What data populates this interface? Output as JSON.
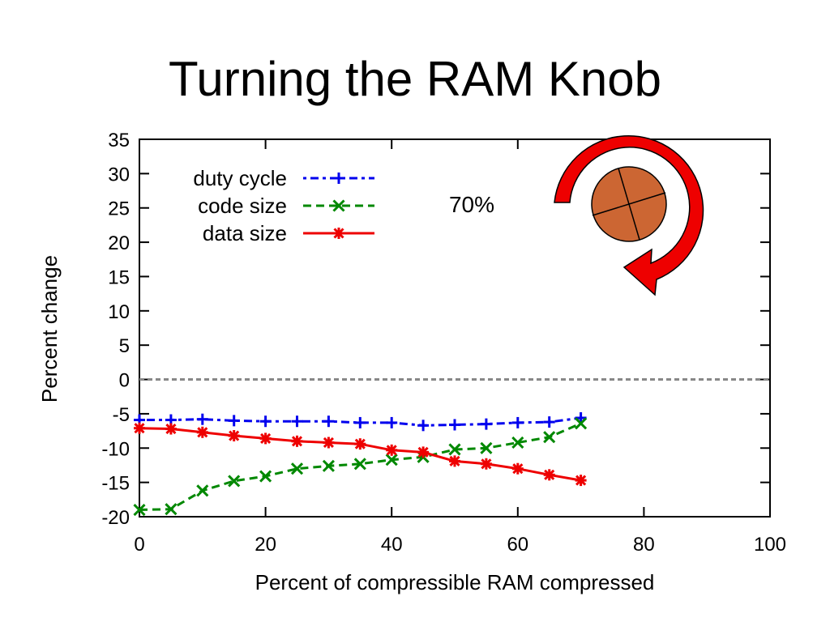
{
  "slide": {
    "title": "Turning the RAM Knob"
  },
  "chart_data": {
    "type": "line",
    "title": "",
    "xlabel": "Percent of compressible RAM compressed",
    "ylabel": "Percent change",
    "xlim": [
      0,
      100
    ],
    "ylim": [
      -20,
      35
    ],
    "xticks": [
      0,
      20,
      40,
      60,
      80,
      100
    ],
    "yticks": [
      -20,
      -15,
      -10,
      -5,
      0,
      5,
      10,
      15,
      20,
      25,
      30,
      35
    ],
    "grid": false,
    "legend": "top-left",
    "annotation": "70%",
    "reference_line": {
      "y": 0,
      "style": "dotted",
      "color": "#888888"
    },
    "series": [
      {
        "name": "duty cycle",
        "color": "#0000ee",
        "dash": "dot-dash",
        "marker": "plus",
        "x": [
          0,
          5,
          10,
          15,
          20,
          25,
          30,
          35,
          40,
          45,
          50,
          55,
          60,
          65,
          70
        ],
        "y": [
          -5.9,
          -5.9,
          -5.8,
          -6.0,
          -6.1,
          -6.1,
          -6.1,
          -6.3,
          -6.3,
          -6.7,
          -6.6,
          -6.5,
          -6.3,
          -6.2,
          -5.6
        ]
      },
      {
        "name": "code size",
        "color": "#008800",
        "dash": "dashed",
        "marker": "x",
        "x": [
          0,
          5,
          10,
          15,
          20,
          25,
          30,
          35,
          40,
          45,
          50,
          55,
          60,
          65,
          70
        ],
        "y": [
          -19.0,
          -18.9,
          -16.2,
          -14.8,
          -14.1,
          -13.0,
          -12.6,
          -12.3,
          -11.7,
          -11.3,
          -10.2,
          -10.0,
          -9.2,
          -8.4,
          -6.4
        ]
      },
      {
        "name": "data size",
        "color": "#ee0000",
        "dash": "solid",
        "marker": "star",
        "x": [
          0,
          5,
          10,
          15,
          20,
          25,
          30,
          35,
          40,
          45,
          50,
          55,
          60,
          65,
          70
        ],
        "y": [
          -7.1,
          -7.2,
          -7.7,
          -8.2,
          -8.6,
          -9.0,
          -9.2,
          -9.4,
          -10.3,
          -10.6,
          -11.9,
          -12.3,
          -13.0,
          -13.9,
          -14.7
        ]
      }
    ]
  },
  "knob": {
    "arrow_color": "#ee0000",
    "knob_color": "#cc6633"
  }
}
